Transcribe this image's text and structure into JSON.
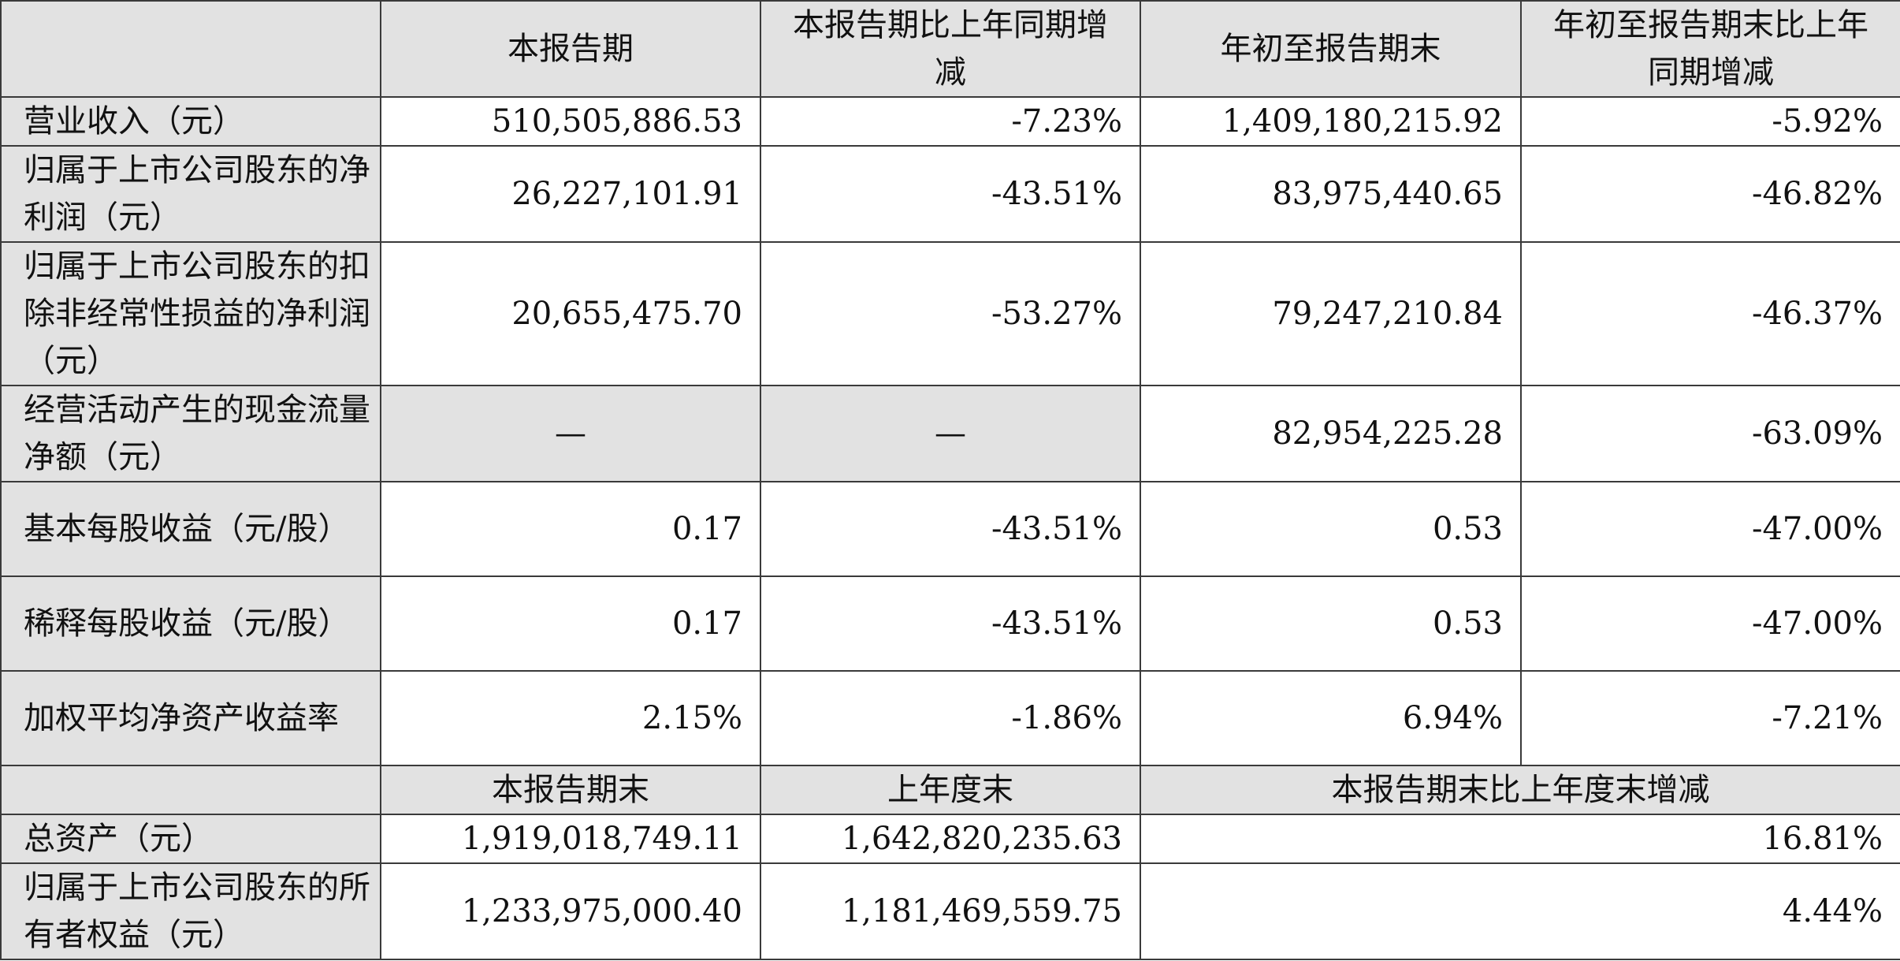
{
  "header1": {
    "col1": "本报告期",
    "col2": "本报告期比上年同期增减",
    "col3": "年初至报告期末",
    "col4": "年初至报告期末比上年同期增减"
  },
  "rows": [
    {
      "label": "营业收入（元）",
      "v1": "510,505,886.53",
      "v2": "-7.23%",
      "v3": "1,409,180,215.92",
      "v4": "-5.92%"
    },
    {
      "label": "归属于上市公司股东的净利润（元）",
      "v1": "26,227,101.91",
      "v2": "-43.51%",
      "v3": "83,975,440.65",
      "v4": "-46.82%"
    },
    {
      "label": "归属于上市公司股东的扣除非经常性损益的净利润（元）",
      "v1": "20,655,475.70",
      "v2": "-53.27%",
      "v3": "79,247,210.84",
      "v4": "-46.37%"
    },
    {
      "label": "经营活动产生的现金流量净额（元）",
      "v1": "—",
      "v2": "—",
      "v3": "82,954,225.28",
      "v4": "-63.09%"
    },
    {
      "label": "基本每股收益（元/股）",
      "v1": "0.17",
      "v2": "-43.51%",
      "v3": "0.53",
      "v4": "-47.00%"
    },
    {
      "label": "稀释每股收益（元/股）",
      "v1": "0.17",
      "v2": "-43.51%",
      "v3": "0.53",
      "v4": "-47.00%"
    },
    {
      "label": "加权平均净资产收益率",
      "v1": "2.15%",
      "v2": "-1.86%",
      "v3": "6.94%",
      "v4": "-7.21%"
    }
  ],
  "header2": {
    "col1": "本报告期末",
    "col2": "上年度末",
    "col3": "本报告期末比上年度末增减"
  },
  "rows2": [
    {
      "label": "总资产（元）",
      "v1": "1,919,018,749.11",
      "v2": "1,642,820,235.63",
      "v3": "16.81%"
    },
    {
      "label": "归属于上市公司股东的所有者权益（元）",
      "v1": "1,233,975,000.40",
      "v2": "1,181,469,559.75",
      "v3": "4.44%"
    }
  ]
}
